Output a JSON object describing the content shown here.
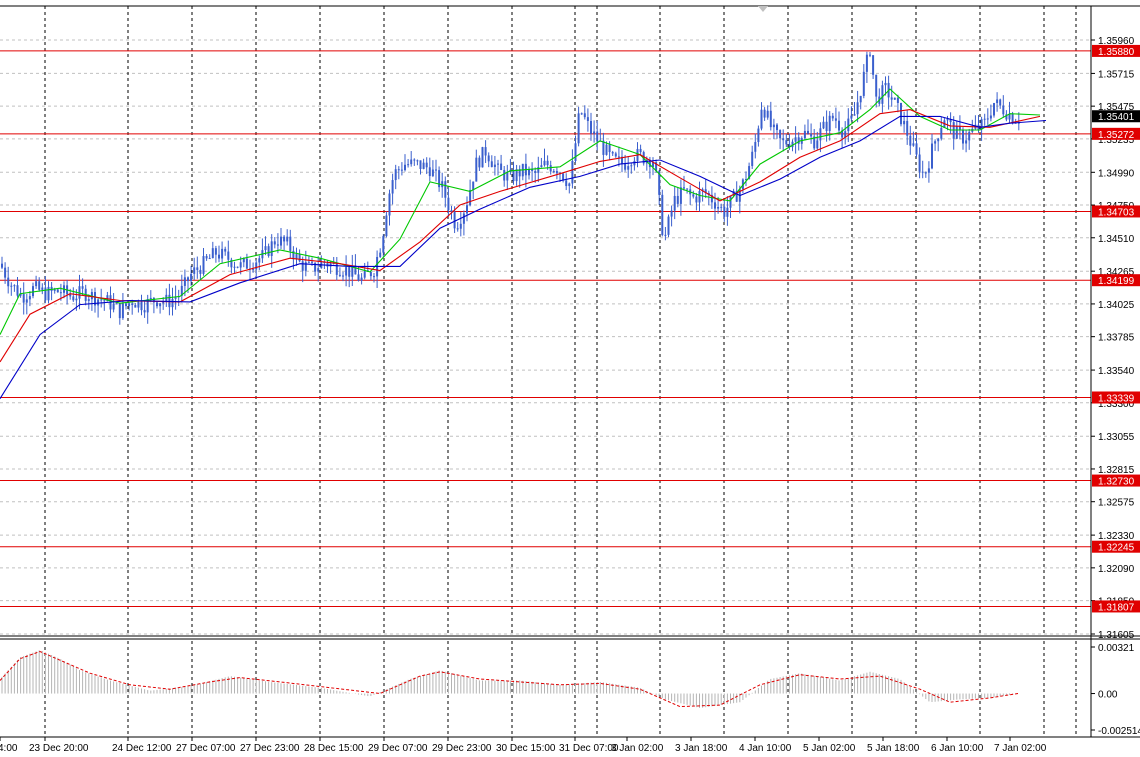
{
  "colors": {
    "background": "#ffffff",
    "grid": "#c0c0c0",
    "candle": "#3a5fcd",
    "level_line": "#e00000",
    "level_badge": "#e00000",
    "current_badge": "#000000",
    "ma_fast": "#00c800",
    "ma_mid": "#e00000",
    "ma_slow": "#0000c8",
    "osc_hist": "#b4b4b4",
    "osc_signal": "#e00000"
  },
  "chart_data": [
    {
      "type": "candlestick",
      "ylim": [
        1.3155,
        1.3605
      ],
      "price_ticks": [
        "1.35960",
        "1.35715",
        "1.35475",
        "1.35235",
        "1.34990",
        "1.34750",
        "1.34510",
        "1.34265",
        "1.34025",
        "1.33785",
        "1.33540",
        "1.33300",
        "1.33055",
        "1.32815",
        "1.32575",
        "1.32330",
        "1.32090",
        "1.31850",
        "1.31605"
      ],
      "time_labels": [
        "4:00",
        "23 Dec 20:00",
        "24 Dec 12:00",
        "27 Dec 07:00",
        "27 Dec 23:00",
        "28 Dec 15:00",
        "29 Dec 07:00",
        "29 Dec 23:00",
        "30 Dec 15:00",
        "31 Dec 07:00",
        "3 Jan 02:00",
        "3 Jan 18:00",
        "4 Jan 10:00",
        "5 Jan 02:00",
        "5 Jan 18:00",
        "6 Jan 10:00",
        "7 Jan 02:00"
      ],
      "levels": [
        {
          "label": "1.35880",
          "value": 1.3588
        },
        {
          "label": "1.35272",
          "value": 1.35272
        },
        {
          "label": "1.34703",
          "value": 1.34703
        },
        {
          "label": "1.34199",
          "value": 1.34199
        },
        {
          "label": "1.33339",
          "value": 1.33339
        },
        {
          "label": "1.32730",
          "value": 1.3273
        },
        {
          "label": "1.32245",
          "value": 1.32245
        },
        {
          "label": "1.31807",
          "value": 1.31807
        }
      ],
      "current_price": {
        "label": "1.35401",
        "value": 1.35401
      },
      "close_path": [
        [
          0,
          1.3432
        ],
        [
          10,
          1.3418
        ],
        [
          22,
          1.3408
        ],
        [
          34,
          1.3414
        ],
        [
          46,
          1.341
        ],
        [
          60,
          1.3412
        ],
        [
          72,
          1.3408
        ],
        [
          84,
          1.3411
        ],
        [
          96,
          1.3407
        ],
        [
          108,
          1.3404
        ],
        [
          120,
          1.3397
        ],
        [
          132,
          1.3405
        ],
        [
          144,
          1.3402
        ],
        [
          156,
          1.3406
        ],
        [
          168,
          1.3404
        ],
        [
          180,
          1.341
        ],
        [
          192,
          1.3425
        ],
        [
          204,
          1.3432
        ],
        [
          216,
          1.344
        ],
        [
          228,
          1.3436
        ],
        [
          240,
          1.343
        ],
        [
          252,
          1.3433
        ],
        [
          264,
          1.3438
        ],
        [
          276,
          1.345
        ],
        [
          288,
          1.3446
        ],
        [
          300,
          1.3432
        ],
        [
          312,
          1.3428
        ],
        [
          324,
          1.3433
        ],
        [
          336,
          1.343
        ],
        [
          348,
          1.3427
        ],
        [
          362,
          1.342
        ],
        [
          374,
          1.3428
        ],
        [
          382,
          1.345
        ],
        [
          388,
          1.348
        ],
        [
          394,
          1.3498
        ],
        [
          404,
          1.3505
        ],
        [
          416,
          1.3505
        ],
        [
          430,
          1.3502
        ],
        [
          442,
          1.3488
        ],
        [
          456,
          1.346
        ],
        [
          466,
          1.3475
        ],
        [
          476,
          1.3505
        ],
        [
          486,
          1.3515
        ],
        [
          498,
          1.35
        ],
        [
          510,
          1.3495
        ],
        [
          522,
          1.35
        ],
        [
          534,
          1.3497
        ],
        [
          546,
          1.3505
        ],
        [
          558,
          1.3502
        ],
        [
          570,
          1.349
        ],
        [
          580,
          1.3545
        ],
        [
          590,
          1.353
        ],
        [
          600,
          1.352
        ],
        [
          612,
          1.3508
        ],
        [
          624,
          1.3505
        ],
        [
          634,
          1.3512
        ],
        [
          644,
          1.351
        ],
        [
          654,
          1.3508
        ],
        [
          664,
          1.3448
        ],
        [
          674,
          1.3478
        ],
        [
          684,
          1.3485
        ],
        [
          694,
          1.348
        ],
        [
          704,
          1.3485
        ],
        [
          714,
          1.3478
        ],
        [
          724,
          1.347
        ],
        [
          734,
          1.348
        ],
        [
          744,
          1.3492
        ],
        [
          754,
          1.3515
        ],
        [
          762,
          1.355
        ],
        [
          772,
          1.353
        ],
        [
          782,
          1.352
        ],
        [
          792,
          1.3523
        ],
        [
          804,
          1.3528
        ],
        [
          814,
          1.3522
        ],
        [
          824,
          1.3532
        ],
        [
          834,
          1.354
        ],
        [
          844,
          1.3528
        ],
        [
          854,
          1.354
        ],
        [
          864,
          1.357
        ],
        [
          870,
          1.359
        ],
        [
          876,
          1.3552
        ],
        [
          886,
          1.356
        ],
        [
          896,
          1.3548
        ],
        [
          906,
          1.353
        ],
        [
          916,
          1.351
        ],
        [
          924,
          1.3496
        ],
        [
          934,
          1.352
        ],
        [
          944,
          1.354
        ],
        [
          954,
          1.3528
        ],
        [
          964,
          1.3524
        ],
        [
          974,
          1.353
        ],
        [
          984,
          1.3534
        ],
        [
          994,
          1.355
        ],
        [
          1004,
          1.3545
        ],
        [
          1012,
          1.354
        ],
        [
          1020,
          1.3538
        ]
      ],
      "ma_fast_path": [
        [
          0,
          1.338
        ],
        [
          20,
          1.341
        ],
        [
          60,
          1.3414
        ],
        [
          120,
          1.3403
        ],
        [
          180,
          1.3408
        ],
        [
          220,
          1.3432
        ],
        [
          280,
          1.3442
        ],
        [
          320,
          1.3436
        ],
        [
          370,
          1.3426
        ],
        [
          400,
          1.345
        ],
        [
          430,
          1.3492
        ],
        [
          470,
          1.3485
        ],
        [
          510,
          1.35
        ],
        [
          560,
          1.3503
        ],
        [
          600,
          1.3522
        ],
        [
          640,
          1.3512
        ],
        [
          670,
          1.349
        ],
        [
          700,
          1.3482
        ],
        [
          730,
          1.3478
        ],
        [
          760,
          1.3505
        ],
        [
          800,
          1.3522
        ],
        [
          840,
          1.3528
        ],
        [
          870,
          1.3545
        ],
        [
          890,
          1.356
        ],
        [
          920,
          1.354
        ],
        [
          950,
          1.353
        ],
        [
          980,
          1.353
        ],
        [
          1010,
          1.3542
        ],
        [
          1040,
          1.3541
        ]
      ],
      "ma_mid_path": [
        [
          0,
          1.336
        ],
        [
          30,
          1.3395
        ],
        [
          70,
          1.341
        ],
        [
          120,
          1.3405
        ],
        [
          180,
          1.3404
        ],
        [
          230,
          1.3424
        ],
        [
          290,
          1.3436
        ],
        [
          340,
          1.3432
        ],
        [
          380,
          1.3427
        ],
        [
          420,
          1.3448
        ],
        [
          460,
          1.3475
        ],
        [
          500,
          1.3485
        ],
        [
          560,
          1.3498
        ],
        [
          600,
          1.3507
        ],
        [
          640,
          1.3512
        ],
        [
          680,
          1.3495
        ],
        [
          720,
          1.3478
        ],
        [
          760,
          1.3492
        ],
        [
          800,
          1.351
        ],
        [
          840,
          1.3522
        ],
        [
          880,
          1.3542
        ],
        [
          910,
          1.3545
        ],
        [
          950,
          1.3533
        ],
        [
          990,
          1.3532
        ],
        [
          1040,
          1.354
        ]
      ],
      "ma_slow_path": [
        [
          0,
          1.3333
        ],
        [
          40,
          1.338
        ],
        [
          80,
          1.3402
        ],
        [
          130,
          1.3405
        ],
        [
          190,
          1.3404
        ],
        [
          240,
          1.3418
        ],
        [
          300,
          1.3432
        ],
        [
          350,
          1.343
        ],
        [
          400,
          1.343
        ],
        [
          440,
          1.3458
        ],
        [
          480,
          1.3472
        ],
        [
          530,
          1.3488
        ],
        [
          580,
          1.3496
        ],
        [
          620,
          1.3505
        ],
        [
          660,
          1.3508
        ],
        [
          700,
          1.3496
        ],
        [
          740,
          1.3482
        ],
        [
          780,
          1.3494
        ],
        [
          820,
          1.351
        ],
        [
          860,
          1.3522
        ],
        [
          900,
          1.354
        ],
        [
          940,
          1.354
        ],
        [
          980,
          1.3532
        ],
        [
          1010,
          1.3535
        ],
        [
          1046,
          1.3537
        ]
      ]
    },
    {
      "type": "oscillator",
      "ylim": [
        -0.002514,
        0.00321
      ],
      "ticks": [
        "0.00321",
        "0.00",
        "-0.002514"
      ],
      "hist_end_x": 1018,
      "hist_path": [
        [
          0,
          0.001
        ],
        [
          20,
          0.0025
        ],
        [
          40,
          0.003
        ],
        [
          60,
          0.0024
        ],
        [
          80,
          0.0016
        ],
        [
          110,
          0.0009
        ],
        [
          150,
          0.0002
        ],
        [
          190,
          0.0005
        ],
        [
          230,
          0.0012
        ],
        [
          270,
          0.0008
        ],
        [
          320,
          0.0004
        ],
        [
          370,
          -0.0002
        ],
        [
          410,
          0.001
        ],
        [
          440,
          0.0016
        ],
        [
          480,
          0.0009
        ],
        [
          520,
          0.0009
        ],
        [
          560,
          0.0006
        ],
        [
          600,
          0.0008
        ],
        [
          640,
          0.0004
        ],
        [
          665,
          -0.0004
        ],
        [
          700,
          -0.001
        ],
        [
          740,
          -0.0006
        ],
        [
          770,
          0.001
        ],
        [
          800,
          0.0014
        ],
        [
          840,
          0.0009
        ],
        [
          870,
          0.0015
        ],
        [
          900,
          0.001
        ],
        [
          930,
          -0.0006
        ],
        [
          960,
          -0.0004
        ],
        [
          990,
          -0.0003
        ],
        [
          1018,
          0.0
        ]
      ],
      "signal_path": [
        [
          0,
          0.0009
        ],
        [
          20,
          0.0024
        ],
        [
          40,
          0.0029
        ],
        [
          60,
          0.0023
        ],
        [
          90,
          0.0014
        ],
        [
          130,
          0.0006
        ],
        [
          170,
          0.0003
        ],
        [
          210,
          0.0008
        ],
        [
          240,
          0.0011
        ],
        [
          280,
          0.0008
        ],
        [
          330,
          0.0004
        ],
        [
          380,
          0.0
        ],
        [
          420,
          0.0012
        ],
        [
          440,
          0.0015
        ],
        [
          480,
          0.001
        ],
        [
          520,
          0.0008
        ],
        [
          560,
          0.0006
        ],
        [
          600,
          0.0007
        ],
        [
          640,
          0.0003
        ],
        [
          680,
          -0.0009
        ],
        [
          720,
          -0.0008
        ],
        [
          760,
          0.0006
        ],
        [
          800,
          0.0013
        ],
        [
          840,
          0.001
        ],
        [
          880,
          0.0012
        ],
        [
          920,
          0.0003
        ],
        [
          950,
          -0.0006
        ],
        [
          990,
          -0.0003
        ],
        [
          1018,
          0.0
        ]
      ]
    }
  ]
}
